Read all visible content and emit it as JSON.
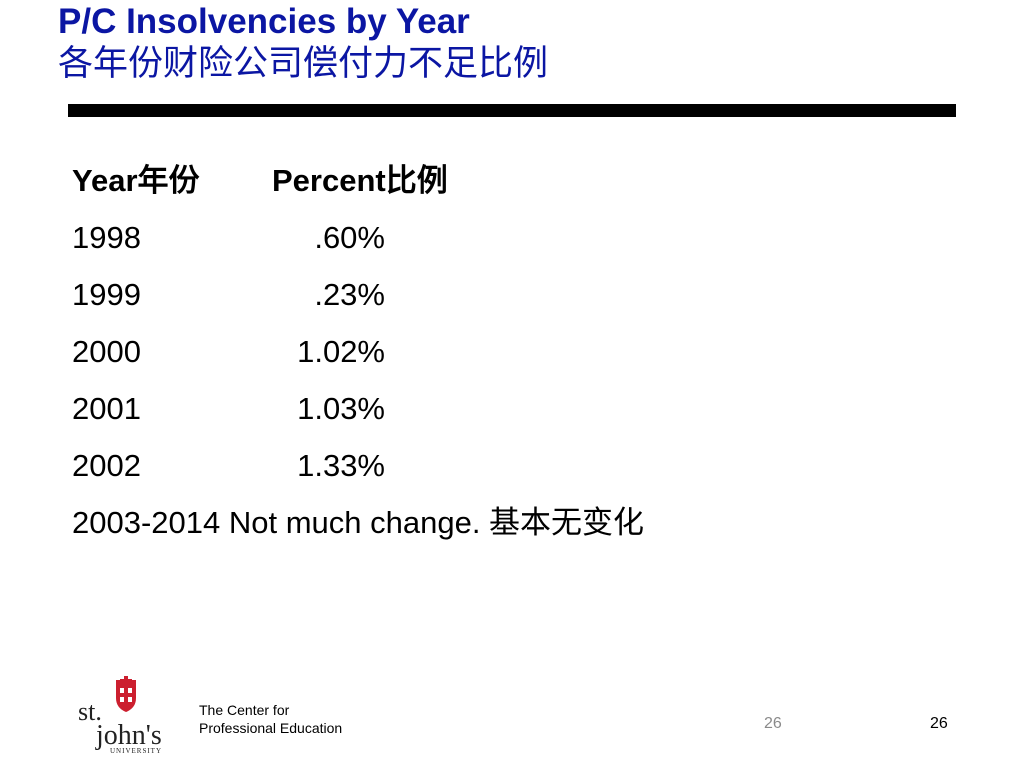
{
  "title": {
    "line1": "P/C Insolvencies by Year",
    "line2": "各年份财险公司偿付力不足比例"
  },
  "table": {
    "header": {
      "year": "Year年份",
      "percent": "Percent比例"
    },
    "rows": [
      {
        "year": "1998",
        "percent": ".60%"
      },
      {
        "year": "1999",
        "percent": ".23%"
      },
      {
        "year": "2000",
        "percent": "1.02%"
      },
      {
        "year": "2001",
        "percent": "1.03%"
      },
      {
        "year": "2002",
        "percent": "1.33%"
      }
    ],
    "note": "2003-2014 Not much change. 基本无变化"
  },
  "footer": {
    "logo": {
      "line1": "st.",
      "line2": "john's",
      "line3": "UNIVERSITY",
      "icon": "shield-cross-icon"
    },
    "center_line1": "The Center for",
    "center_line2": "Professional Education",
    "page_number_gray": "26",
    "page_number_black": "26"
  },
  "colors": {
    "title": "#0b16a3",
    "logo_red": "#cc1f2f",
    "rule": "#000000"
  }
}
